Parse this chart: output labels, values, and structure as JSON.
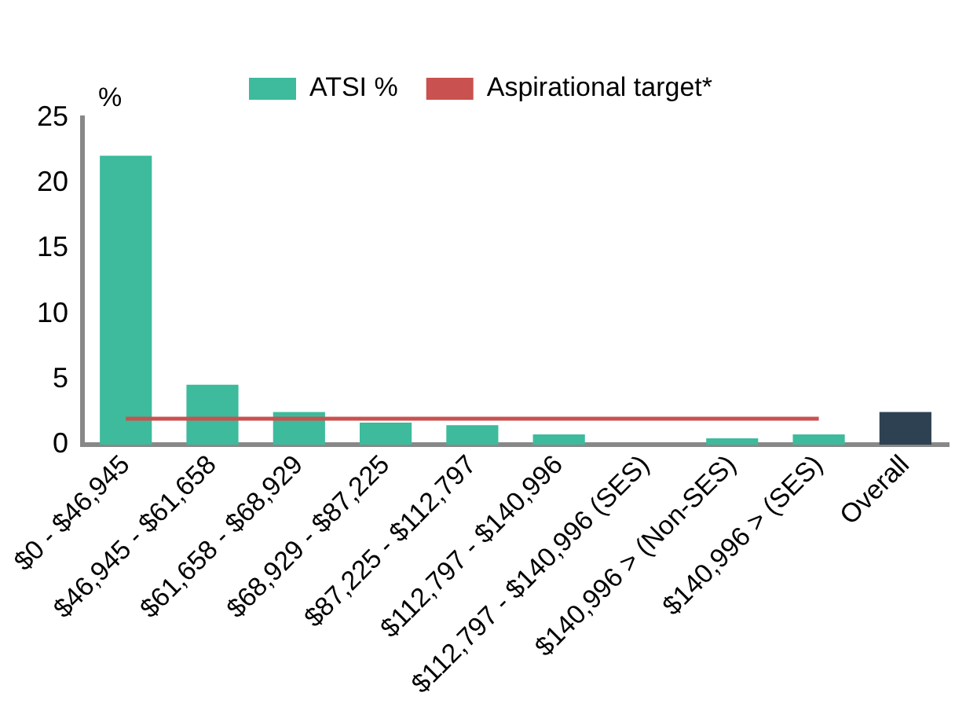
{
  "chart_data": {
    "type": "bar",
    "ylabel": "%",
    "categories": [
      "$0 - $46,945",
      "$46,945 - $61,658",
      "$61,658 - $68,929",
      "$68,929 - $87,225",
      "$87,225 - $112,797",
      "$112,797 - $140,996",
      "$112,797 - $140,996 (SES)",
      "$140,996 > (Non-SES)",
      "$140,996 > (SES)",
      "Overall"
    ],
    "series": [
      {
        "name": "ATSI %",
        "color": "#3dbb9c",
        "colors": [
          "#3dbb9c",
          "#3dbb9c",
          "#3dbb9c",
          "#3dbb9c",
          "#3dbb9c",
          "#3dbb9c",
          "#3dbb9c",
          "#3dbb9c",
          "#3dbb9c",
          "#2d4152"
        ],
        "values": [
          22.1,
          4.6,
          2.5,
          1.7,
          1.5,
          0.8,
          0,
          0.5,
          0.8,
          2.5
        ]
      },
      {
        "name": "Aspirational target*",
        "type": "line",
        "color": "#c9514f",
        "values": [
          2,
          2,
          2,
          2,
          2,
          2,
          2,
          2,
          2,
          null
        ]
      }
    ],
    "ylim": [
      0,
      25
    ],
    "yticks": [
      0,
      5,
      10,
      15,
      20,
      25
    ],
    "grid": false,
    "legend": "top",
    "marker": "none"
  }
}
